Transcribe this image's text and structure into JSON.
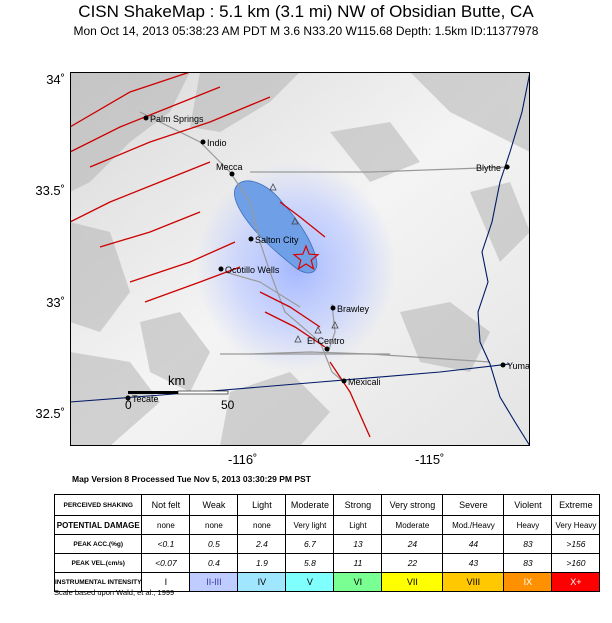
{
  "title": "CISN ShakeMap : 5.1 km (3.1 mi) NW of Obsidian Butte, CA",
  "subtitle": "Mon Oct 14, 2013 05:38:23 AM PDT   M 3.6   N33.20 W115.68   Depth: 1.5km   ID:11377978",
  "axes": {
    "lat_labels": [
      "34˚",
      "33.5˚",
      "33˚",
      "32.5˚"
    ],
    "lon_labels": [
      "-116˚",
      "-115˚"
    ]
  },
  "places": [
    {
      "name": "Palm Springs"
    },
    {
      "name": "Indio"
    },
    {
      "name": "Mecca"
    },
    {
      "name": "Salton City"
    },
    {
      "name": "Ocotillo Wells"
    },
    {
      "name": "Brawley"
    },
    {
      "name": "El Centro"
    },
    {
      "name": "Mexicali"
    },
    {
      "name": "Tecate"
    },
    {
      "name": "Yuma"
    },
    {
      "name": "Blythe"
    }
  ],
  "scale_bar": {
    "unit": "km",
    "start": "0",
    "end": "50"
  },
  "version_text": "Map Version 8 Processed Tue Nov  5, 2013 03:30:29 PM PST",
  "legend": {
    "row_headers": {
      "shaking": "PERCEIVED SHAKING",
      "damage": "POTENTIAL DAMAGE",
      "acc": "PEAK ACC.(%g)",
      "vel": "PEAK VEL.(cm/s)",
      "intensity": "INSTRUMENTAL INTENSITY"
    },
    "columns": [
      {
        "shaking": "Not felt",
        "damage": "none",
        "acc": "<0.1",
        "vel": "<0.07",
        "intensity": "I",
        "color": "#ffffff"
      },
      {
        "shaking": "Weak",
        "damage": "none",
        "acc": "0.5",
        "vel": "0.4",
        "intensity": "II-III",
        "color": "#bfccff"
      },
      {
        "shaking": "Light",
        "damage": "none",
        "acc": "2.4",
        "vel": "1.9",
        "intensity": "IV",
        "color": "#a0e6ff"
      },
      {
        "shaking": "Moderate",
        "damage": "Very light",
        "acc": "6.7",
        "vel": "5.8",
        "intensity": "V",
        "color": "#80ffff"
      },
      {
        "shaking": "Strong",
        "damage": "Light",
        "acc": "13",
        "vel": "11",
        "intensity": "VI",
        "color": "#7aff93"
      },
      {
        "shaking": "Very strong",
        "damage": "Moderate",
        "acc": "24",
        "vel": "22",
        "intensity": "VII",
        "color": "#ffff00"
      },
      {
        "shaking": "Severe",
        "damage": "Mod./Heavy",
        "acc": "44",
        "vel": "43",
        "intensity": "VIII",
        "color": "#ffc800"
      },
      {
        "shaking": "Violent",
        "damage": "Heavy",
        "acc": "83",
        "vel": "83",
        "intensity": "IX",
        "color": "#ff9100"
      },
      {
        "shaking": "Extreme",
        "damage": "Very Heavy",
        "acc": ">156",
        "vel": ">160",
        "intensity": "X+",
        "color": "#ff0000"
      }
    ]
  },
  "footnote": "Scale based upon Wald, et al.; 1999",
  "colors": {
    "fault": "#cc0000",
    "lake": "#6f9fe6",
    "shaking_zone": "#bfccff",
    "border": "#001a66",
    "epicenter": "#e00000"
  }
}
